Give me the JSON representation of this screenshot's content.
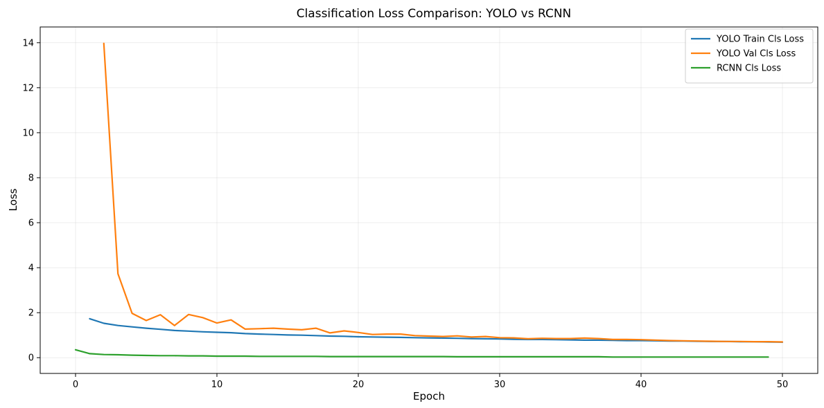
{
  "chart_data": {
    "type": "line",
    "title": "Classification Loss Comparison: YOLO vs RCNN",
    "xlabel": "Epoch",
    "ylabel": "Loss",
    "xlim": [
      -2.5,
      52.5
    ],
    "ylim": [
      -0.7,
      14.7
    ],
    "xticks": [
      0,
      10,
      20,
      30,
      40,
      50
    ],
    "yticks": [
      0,
      2,
      4,
      6,
      8,
      10,
      12,
      14
    ],
    "grid": true,
    "legend_position": "top-right",
    "series": [
      {
        "name": "YOLO Train Cls Loss",
        "color": "#1f77b4",
        "x": [
          1,
          2,
          3,
          4,
          5,
          6,
          7,
          8,
          9,
          10,
          11,
          12,
          13,
          14,
          15,
          16,
          17,
          18,
          19,
          20,
          21,
          22,
          23,
          24,
          25,
          26,
          27,
          28,
          29,
          30,
          31,
          32,
          33,
          34,
          35,
          36,
          37,
          38,
          39,
          40,
          41,
          42,
          43,
          44,
          45,
          46,
          47,
          48,
          49,
          50
        ],
        "y": [
          1.73,
          1.53,
          1.43,
          1.37,
          1.31,
          1.26,
          1.21,
          1.18,
          1.15,
          1.13,
          1.11,
          1.07,
          1.05,
          1.03,
          1.01,
          1.0,
          0.98,
          0.96,
          0.95,
          0.93,
          0.92,
          0.91,
          0.9,
          0.89,
          0.88,
          0.87,
          0.86,
          0.85,
          0.84,
          0.83,
          0.82,
          0.81,
          0.81,
          0.8,
          0.79,
          0.78,
          0.78,
          0.77,
          0.76,
          0.76,
          0.75,
          0.74,
          0.74,
          0.73,
          0.72,
          0.72,
          0.71,
          0.71,
          0.7,
          0.69
        ]
      },
      {
        "name": "YOLO Val Cls Loss",
        "color": "#ff7f0e",
        "x": [
          2,
          3,
          4,
          5,
          6,
          7,
          8,
          9,
          10,
          11,
          12,
          13,
          14,
          15,
          16,
          17,
          18,
          19,
          20,
          21,
          22,
          23,
          24,
          25,
          26,
          27,
          28,
          29,
          30,
          31,
          32,
          33,
          34,
          35,
          36,
          37,
          38,
          39,
          40,
          41,
          42,
          43,
          44,
          45,
          46,
          47,
          48,
          49,
          50
        ],
        "y": [
          13.97,
          3.73,
          1.97,
          1.65,
          1.91,
          1.43,
          1.92,
          1.78,
          1.54,
          1.68,
          1.27,
          1.29,
          1.31,
          1.27,
          1.24,
          1.31,
          1.1,
          1.19,
          1.12,
          1.03,
          1.05,
          1.05,
          0.98,
          0.96,
          0.94,
          0.97,
          0.92,
          0.94,
          0.89,
          0.88,
          0.84,
          0.86,
          0.85,
          0.85,
          0.87,
          0.85,
          0.81,
          0.81,
          0.8,
          0.78,
          0.76,
          0.75,
          0.74,
          0.73,
          0.72,
          0.72,
          0.71,
          0.71,
          0.7
        ]
      },
      {
        "name": "RCNN Cls Loss",
        "color": "#2ca02c",
        "x": [
          0,
          1,
          2,
          3,
          4,
          5,
          6,
          7,
          8,
          9,
          10,
          11,
          12,
          13,
          14,
          15,
          16,
          17,
          18,
          19,
          20,
          21,
          22,
          23,
          24,
          25,
          26,
          27,
          28,
          29,
          30,
          31,
          32,
          33,
          34,
          35,
          36,
          37,
          38,
          39,
          40,
          41,
          42,
          43,
          44,
          45,
          46,
          47,
          48,
          49
        ],
        "y": [
          0.35,
          0.18,
          0.14,
          0.13,
          0.11,
          0.1,
          0.09,
          0.09,
          0.08,
          0.08,
          0.07,
          0.07,
          0.07,
          0.06,
          0.06,
          0.06,
          0.06,
          0.06,
          0.05,
          0.05,
          0.05,
          0.05,
          0.05,
          0.05,
          0.05,
          0.05,
          0.05,
          0.04,
          0.04,
          0.04,
          0.04,
          0.04,
          0.04,
          0.04,
          0.04,
          0.04,
          0.04,
          0.04,
          0.03,
          0.03,
          0.03,
          0.03,
          0.03,
          0.03,
          0.03,
          0.03,
          0.03,
          0.03,
          0.03,
          0.03
        ]
      }
    ]
  }
}
